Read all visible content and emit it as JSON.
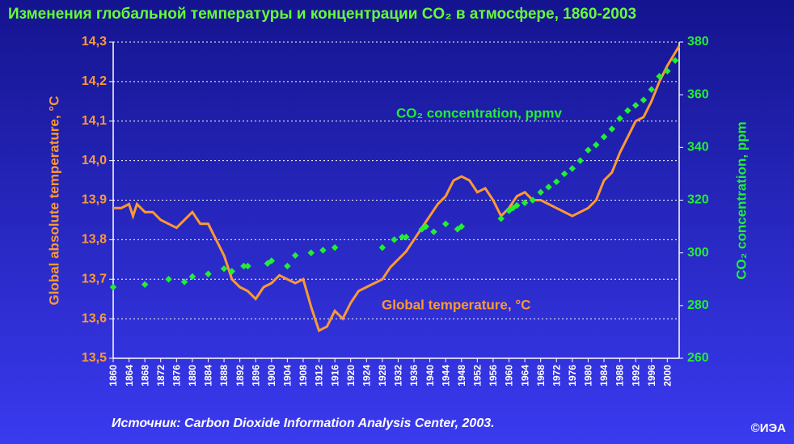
{
  "chart_data": {
    "type": "line",
    "title": "Изменения глобальной температуры и концентрации CO₂ в атмосфере, 1860-2003",
    "ylabel": "Global absolute temperature, °C",
    "y2label": "CO₂ concentration, ppm",
    "source": "Источник: Carbon Dioxide Information Analysis Center, 2003.",
    "copyright": "©ИЭА",
    "xlim": [
      1860,
      2003
    ],
    "xticks": [
      1860,
      1864,
      1868,
      1872,
      1876,
      1880,
      1884,
      1888,
      1892,
      1896,
      1900,
      1904,
      1908,
      1912,
      1916,
      1920,
      1924,
      1928,
      1932,
      1936,
      1940,
      1944,
      1948,
      1952,
      1956,
      1960,
      1964,
      1968,
      1972,
      1976,
      1980,
      1984,
      1988,
      1992,
      1996,
      2000
    ],
    "ylim": [
      13.5,
      14.3
    ],
    "yticks": [
      {
        "value": 13.5,
        "label": "13,5"
      },
      {
        "value": 13.6,
        "label": "13,6"
      },
      {
        "value": 13.7,
        "label": "13,7"
      },
      {
        "value": 13.8,
        "label": "13,8"
      },
      {
        "value": 13.9,
        "label": "13,9"
      },
      {
        "value": 14.0,
        "label": "14,0"
      },
      {
        "value": 14.1,
        "label": "14,1"
      },
      {
        "value": 14.2,
        "label": "14,2"
      },
      {
        "value": 14.3,
        "label": "14,3"
      }
    ],
    "y2lim": [
      260,
      380
    ],
    "y2ticks": [
      260,
      280,
      300,
      320,
      340,
      360,
      380
    ],
    "grid": true,
    "series": [
      {
        "name": "Global temperature, °C",
        "color": "#ff9933",
        "type": "line",
        "x": [
          1860,
          1862,
          1864,
          1865,
          1866,
          1868,
          1870,
          1872,
          1874,
          1876,
          1878,
          1880,
          1882,
          1884,
          1886,
          1888,
          1890,
          1892,
          1894,
          1896,
          1898,
          1900,
          1902,
          1904,
          1906,
          1908,
          1910,
          1912,
          1914,
          1916,
          1918,
          1920,
          1922,
          1924,
          1926,
          1928,
          1930,
          1932,
          1934,
          1936,
          1938,
          1940,
          1942,
          1944,
          1946,
          1948,
          1950,
          1952,
          1954,
          1956,
          1958,
          1960,
          1962,
          1964,
          1966,
          1968,
          1970,
          1972,
          1974,
          1976,
          1978,
          1980,
          1982,
          1984,
          1986,
          1988,
          1990,
          1992,
          1994,
          1996,
          1998,
          2000,
          2003
        ],
        "values": [
          13.88,
          13.88,
          13.89,
          13.86,
          13.89,
          13.87,
          13.87,
          13.85,
          13.84,
          13.83,
          13.85,
          13.87,
          13.84,
          13.84,
          13.8,
          13.76,
          13.7,
          13.68,
          13.67,
          13.65,
          13.68,
          13.69,
          13.71,
          13.7,
          13.69,
          13.7,
          13.63,
          13.57,
          13.58,
          13.62,
          13.6,
          13.64,
          13.67,
          13.68,
          13.69,
          13.7,
          13.73,
          13.75,
          13.77,
          13.8,
          13.83,
          13.86,
          13.89,
          13.91,
          13.95,
          13.96,
          13.95,
          13.92,
          13.93,
          13.9,
          13.86,
          13.88,
          13.91,
          13.92,
          13.9,
          13.9,
          13.89,
          13.88,
          13.87,
          13.86,
          13.87,
          13.88,
          13.9,
          13.95,
          13.97,
          14.02,
          14.06,
          14.1,
          14.11,
          14.15,
          14.2,
          14.24,
          14.29
        ]
      },
      {
        "name": "CO₂ concentration, ppmv",
        "color": "#22ee33",
        "type": "scatter",
        "axis": "y2",
        "x": [
          1860,
          1868,
          1874,
          1878,
          1880,
          1884,
          1888,
          1890,
          1893,
          1894,
          1899,
          1900,
          1904,
          1906,
          1910,
          1913,
          1916,
          1928,
          1931,
          1933,
          1934,
          1938,
          1939,
          1941,
          1944,
          1947,
          1948,
          1958,
          1960,
          1961,
          1962,
          1964,
          1966,
          1968,
          1970,
          1972,
          1974,
          1976,
          1978,
          1980,
          1982,
          1984,
          1986,
          1988,
          1990,
          1992,
          1994,
          1996,
          1998,
          2000,
          2002
        ],
        "values": [
          287,
          288,
          290,
          289,
          291,
          292,
          294,
          293,
          295,
          295,
          296,
          297,
          295,
          299,
          300,
          301,
          302,
          302,
          305,
          306,
          306,
          309,
          310,
          308,
          311,
          309,
          310,
          313,
          316,
          317,
          318,
          319,
          320,
          323,
          325,
          327,
          330,
          332,
          335,
          339,
          341,
          344,
          347,
          351,
          354,
          356,
          358,
          362,
          367,
          369,
          373
        ]
      }
    ]
  }
}
